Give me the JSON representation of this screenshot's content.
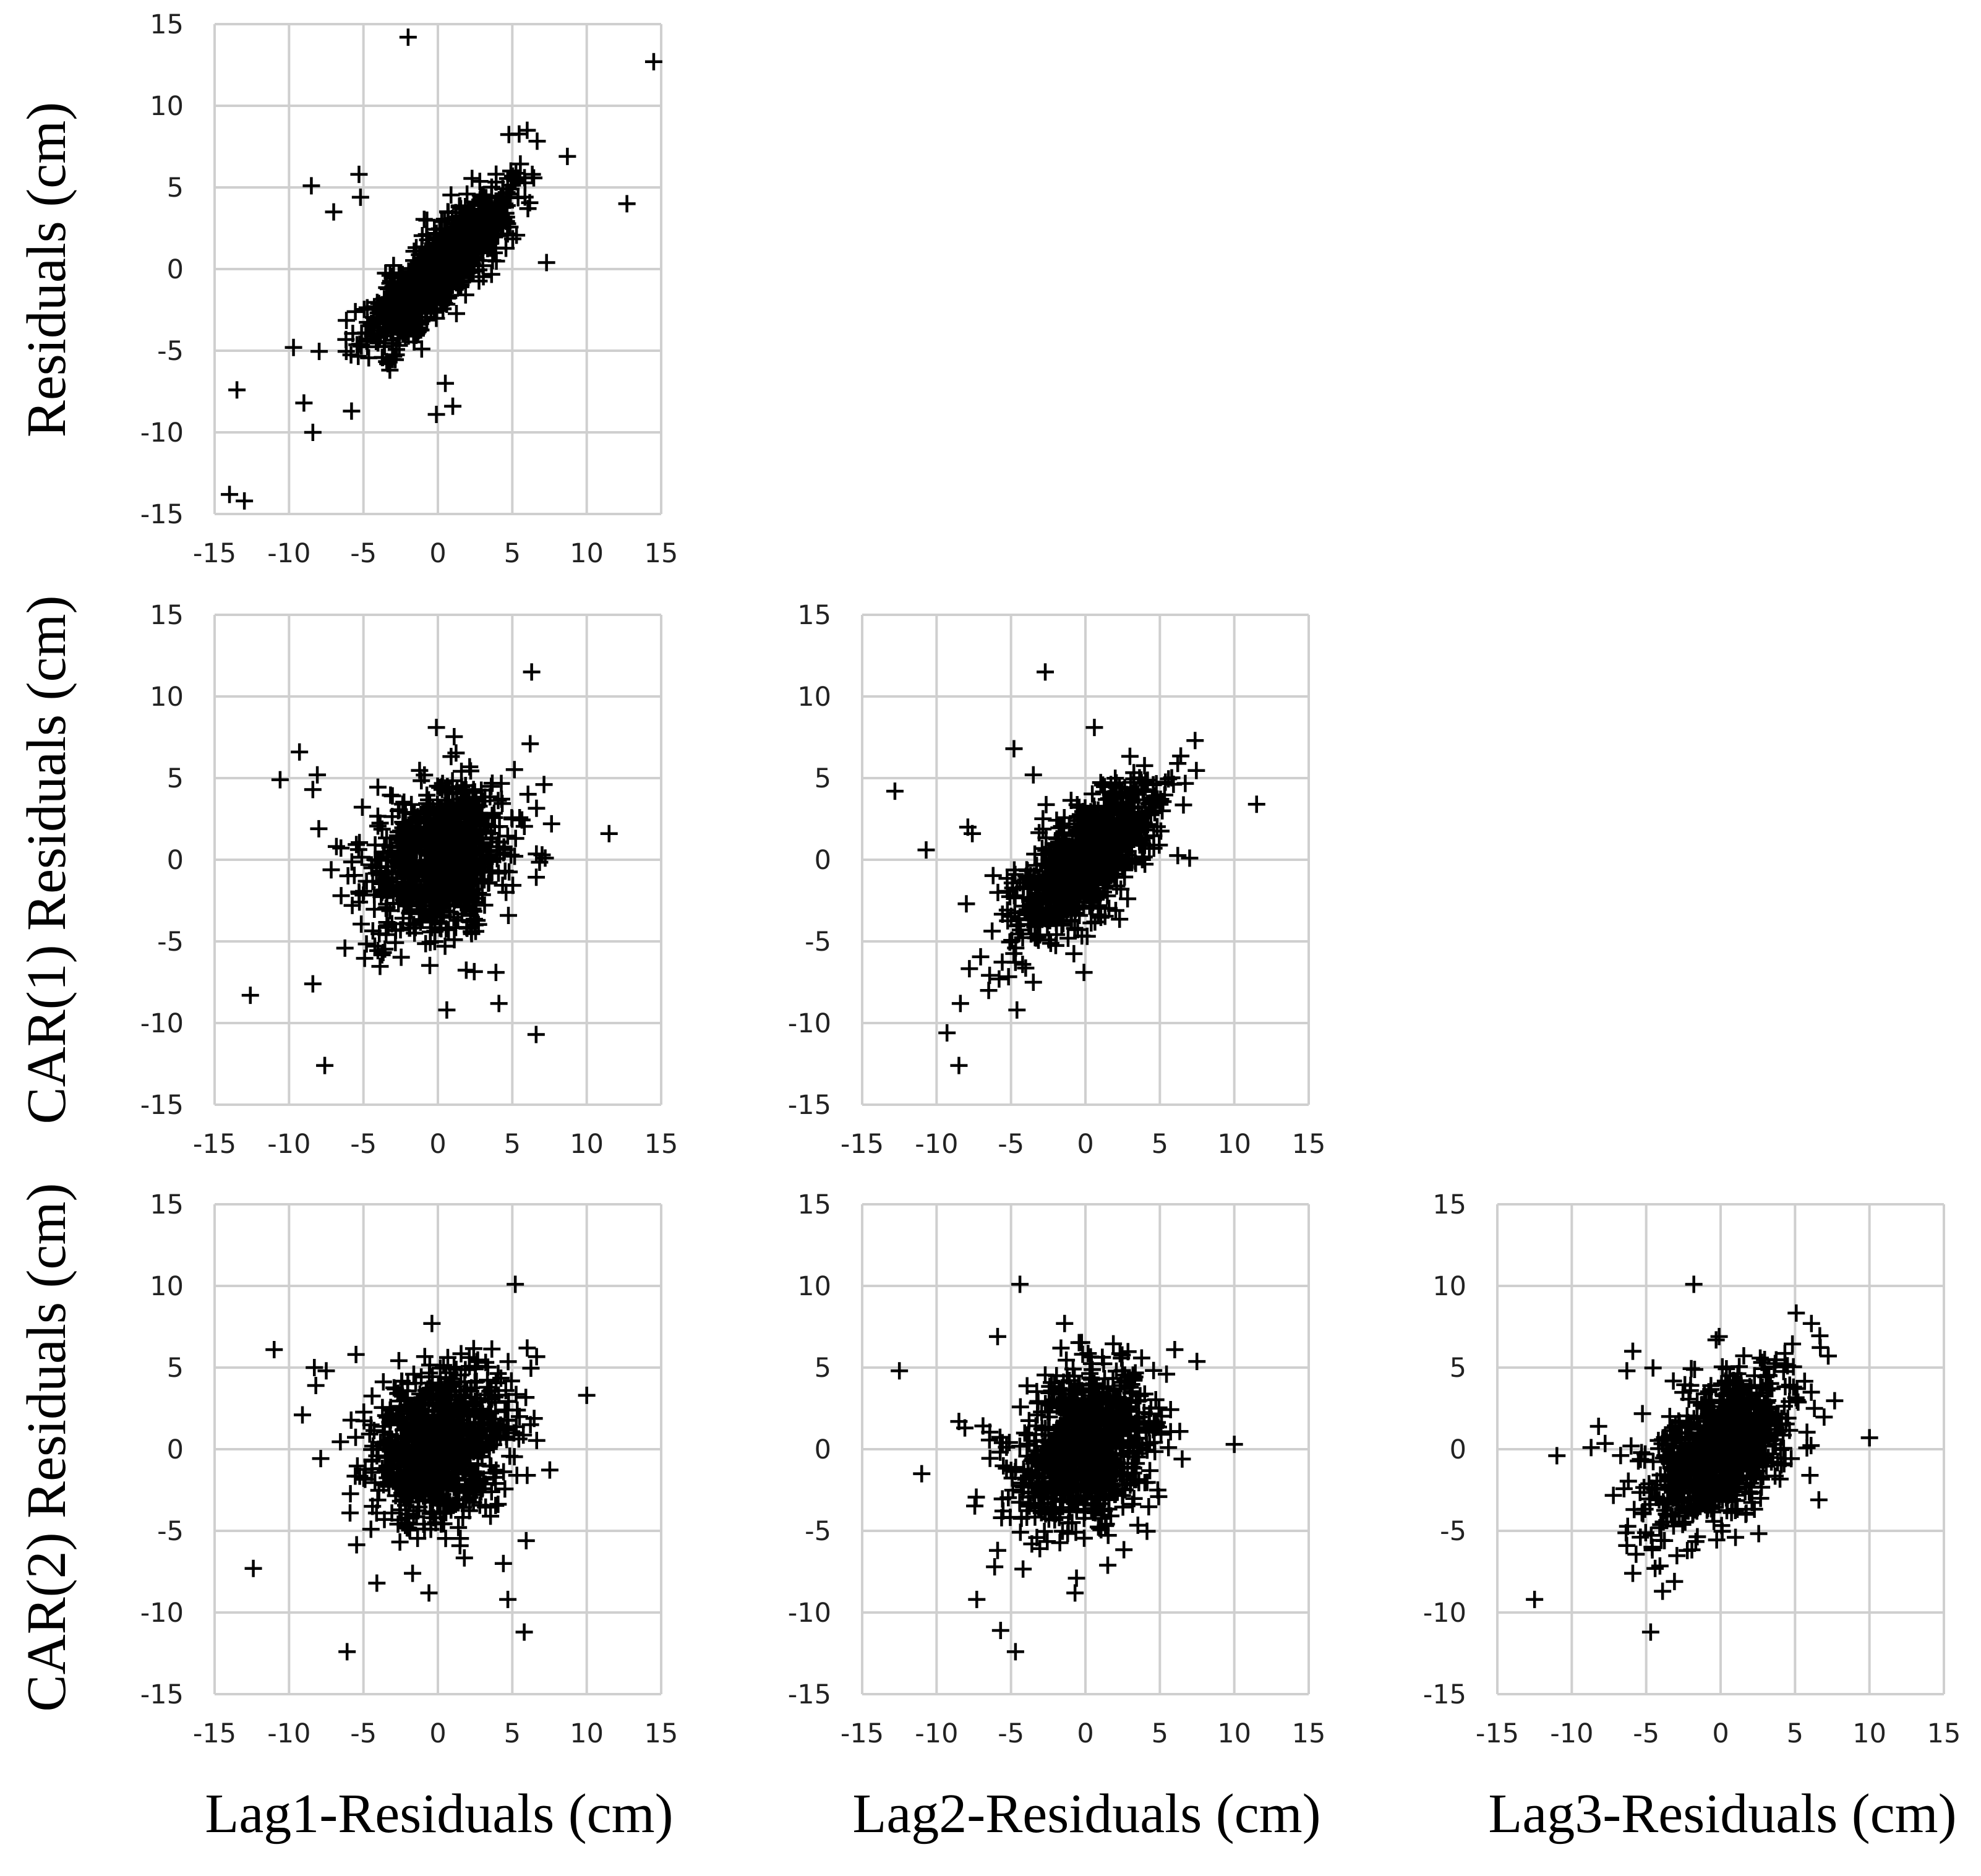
{
  "figure": {
    "x_axis_titles": [
      "Lag1-Residuals (cm)",
      "Lag2-Residuals (cm)",
      "Lag3-Residuals (cm)"
    ],
    "y_axis_titles": [
      "Residuals (cm)",
      "CAR(1) Residuals (cm)",
      "CAR(2) Residuals (cm)"
    ]
  },
  "chart_data": [
    {
      "type": "scatter",
      "row": 1,
      "col": 1,
      "marker": "+",
      "xlim": [
        -15,
        15
      ],
      "ylim": [
        -15,
        15
      ],
      "xticks": [
        -15,
        -10,
        -5,
        0,
        5,
        10,
        15
      ],
      "yticks": [
        -15,
        -10,
        -5,
        0,
        5,
        10,
        15
      ],
      "grid": true,
      "correlation": 0.85,
      "n_core": 1050,
      "seed": 11,
      "outliers": [
        [
          -2,
          14.2
        ],
        [
          14.5,
          12.7
        ],
        [
          12.7,
          4
        ],
        [
          -13.5,
          -7.4
        ],
        [
          -14,
          -13.8
        ],
        [
          -13,
          -14.2
        ],
        [
          -8.5,
          5.1
        ],
        [
          -8.4,
          -10
        ],
        [
          0.5,
          -7
        ],
        [
          1,
          -8.4
        ],
        [
          -0.1,
          -8.9
        ],
        [
          -9.7,
          -4.8
        ],
        [
          -5.3,
          5.8
        ],
        [
          7.3,
          0.4
        ],
        [
          8.7,
          6.9
        ],
        [
          6,
          8.5
        ],
        [
          -7,
          3.5
        ],
        [
          -9,
          -8.2
        ],
        [
          -5.2,
          4.4
        ],
        [
          -5.8,
          -8.7
        ]
      ]
    },
    {
      "type": "scatter",
      "row": 2,
      "col": 1,
      "marker": "+",
      "xlim": [
        -15,
        15
      ],
      "ylim": [
        -15,
        15
      ],
      "xticks": [
        -15,
        -10,
        -5,
        0,
        5,
        10,
        15
      ],
      "yticks": [
        -15,
        -10,
        -5,
        0,
        5,
        10,
        15
      ],
      "grid": true,
      "correlation": 0.3,
      "n_core": 950,
      "seed": 22,
      "outliers": [
        [
          6.3,
          11.5
        ],
        [
          11.5,
          1.6
        ],
        [
          -9.3,
          6.6
        ],
        [
          -10.6,
          4.9
        ],
        [
          -12.6,
          -8.3
        ],
        [
          -7.6,
          -12.6
        ],
        [
          -8.4,
          -7.6
        ],
        [
          0.6,
          -9.2
        ],
        [
          4.1,
          -8.8
        ],
        [
          6.6,
          -10.7
        ],
        [
          6.2,
          7.1
        ],
        [
          -0.1,
          8.1
        ],
        [
          -8.1,
          5.2
        ],
        [
          -8.4,
          4.3
        ],
        [
          -8,
          1.9
        ],
        [
          3.9,
          -6.9
        ],
        [
          -6.5,
          -2.2
        ],
        [
          7,
          0.3
        ]
      ]
    },
    {
      "type": "scatter",
      "row": 2,
      "col": 2,
      "marker": "+",
      "xlim": [
        -15,
        15
      ],
      "ylim": [
        -15,
        15
      ],
      "xticks": [
        -15,
        -10,
        -5,
        0,
        5,
        10,
        15
      ],
      "yticks": [
        -15,
        -10,
        -5,
        0,
        5,
        10,
        15
      ],
      "grid": true,
      "correlation": 0.7,
      "n_core": 950,
      "seed": 33,
      "outliers": [
        [
          -2.7,
          11.5
        ],
        [
          11.5,
          3.4
        ],
        [
          -12.8,
          4.2
        ],
        [
          -10.7,
          0.6
        ],
        [
          -9.3,
          -10.6
        ],
        [
          -8.5,
          -12.6
        ],
        [
          -8.4,
          -8.8
        ],
        [
          -7.6,
          1.6
        ],
        [
          -7.9,
          2
        ],
        [
          -4.8,
          6.8
        ],
        [
          -0.1,
          -6.9
        ],
        [
          7,
          0.1
        ],
        [
          0.6,
          8.1
        ],
        [
          -4.6,
          -9.2
        ],
        [
          -6.5,
          -8
        ],
        [
          -8,
          -2.7
        ],
        [
          -5.8,
          -7.3
        ],
        [
          -3.5,
          5.2
        ],
        [
          -3.5,
          -7.5
        ],
        [
          6.2,
          5.9
        ]
      ]
    },
    {
      "type": "scatter",
      "row": 3,
      "col": 1,
      "marker": "+",
      "xlim": [
        -15,
        15
      ],
      "ylim": [
        -15,
        15
      ],
      "xticks": [
        -15,
        -10,
        -5,
        0,
        5,
        10,
        15
      ],
      "yticks": [
        -15,
        -10,
        -5,
        0,
        5,
        10,
        15
      ],
      "grid": true,
      "correlation": 0.25,
      "n_core": 950,
      "seed": 44,
      "outliers": [
        [
          5.2,
          10.1
        ],
        [
          10,
          3.3
        ],
        [
          -11,
          6.1
        ],
        [
          -12.4,
          -7.3
        ],
        [
          -6.1,
          -12.4
        ],
        [
          5.8,
          -11.2
        ],
        [
          4.7,
          -9.2
        ],
        [
          4.4,
          -7
        ],
        [
          -9.1,
          2.1
        ],
        [
          -8.3,
          5
        ],
        [
          -7.5,
          4.8
        ],
        [
          -8.2,
          3.9
        ],
        [
          -5.5,
          5.8
        ],
        [
          -4.1,
          -8.2
        ],
        [
          6,
          6.2
        ],
        [
          6,
          -1.6
        ],
        [
          -0.4,
          7.7
        ],
        [
          -5.9,
          -3.9
        ],
        [
          -1.7,
          -7.6
        ],
        [
          -0.6,
          -8.8
        ]
      ]
    },
    {
      "type": "scatter",
      "row": 3,
      "col": 2,
      "marker": "+",
      "xlim": [
        -15,
        15
      ],
      "ylim": [
        -15,
        15
      ],
      "xticks": [
        -15,
        -10,
        -5,
        0,
        5,
        10,
        15
      ],
      "yticks": [
        -15,
        -10,
        -5,
        0,
        5,
        10,
        15
      ],
      "grid": true,
      "correlation": 0.25,
      "n_core": 950,
      "seed": 55,
      "outliers": [
        [
          -4.4,
          10.1
        ],
        [
          10,
          0.3
        ],
        [
          -12.5,
          4.8
        ],
        [
          -11,
          -1.5
        ],
        [
          -7.3,
          -9.2
        ],
        [
          -4.7,
          -12.4
        ],
        [
          -5.7,
          -11.1
        ],
        [
          -5.9,
          6.9
        ],
        [
          -8.5,
          1.7
        ],
        [
          -8.1,
          1.3
        ],
        [
          6,
          6.1
        ],
        [
          6.5,
          -0.6
        ],
        [
          1.5,
          -7.1
        ],
        [
          -0.7,
          -8.8
        ],
        [
          -0.6,
          -7.9
        ],
        [
          -1.4,
          7.7
        ],
        [
          -3.6,
          -5.8
        ],
        [
          -5.9,
          -6.2
        ],
        [
          -6.1,
          -7.2
        ]
      ]
    },
    {
      "type": "scatter",
      "row": 3,
      "col": 3,
      "marker": "+",
      "xlim": [
        -15,
        15
      ],
      "ylim": [
        -15,
        15
      ],
      "xticks": [
        -15,
        -10,
        -5,
        0,
        5,
        10,
        15
      ],
      "yticks": [
        -15,
        -10,
        -5,
        0,
        5,
        10,
        15
      ],
      "grid": true,
      "correlation": 0.5,
      "n_core": 950,
      "seed": 66,
      "outliers": [
        [
          -1.8,
          10.1
        ],
        [
          10,
          0.7
        ],
        [
          -12.5,
          -9.2
        ],
        [
          -11,
          -0.4
        ],
        [
          -4.7,
          -11.2
        ],
        [
          6.1,
          7.7
        ],
        [
          6.6,
          -3.1
        ],
        [
          6,
          -1.6
        ],
        [
          6.3,
          2.5
        ],
        [
          -8.7,
          0.1
        ],
        [
          -8.2,
          1.4
        ],
        [
          -5.9,
          6
        ],
        [
          -6.3,
          4.8
        ],
        [
          -5.9,
          -7.6
        ],
        [
          -6.3,
          -5.9
        ],
        [
          -4.4,
          -7.3
        ],
        [
          -3.1,
          -8.1
        ],
        [
          -3.9,
          -8.7
        ],
        [
          -0.1,
          6.9
        ],
        [
          1,
          -5.4
        ],
        [
          -4.6,
          -6
        ]
      ]
    }
  ]
}
